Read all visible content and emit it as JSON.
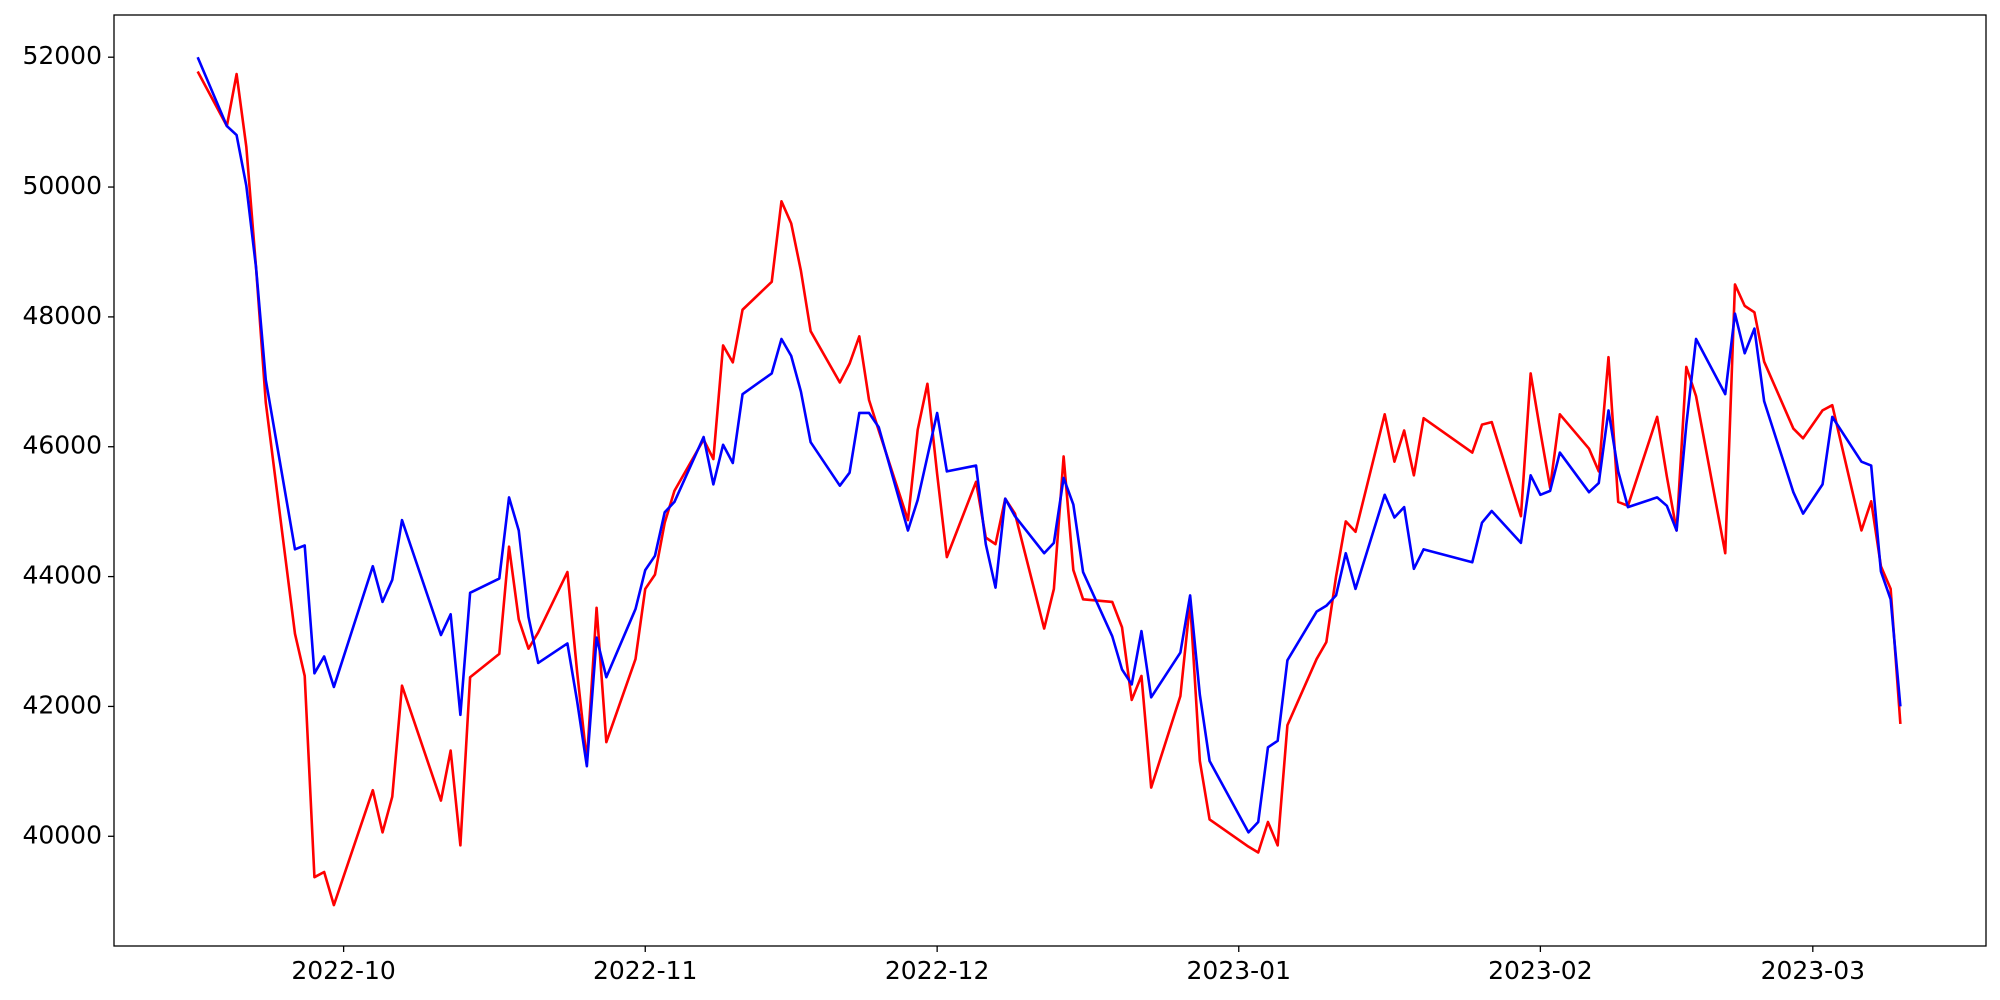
{
  "chart_data": {
    "type": "line",
    "x": [
      -15,
      -12,
      -11,
      -10,
      -9,
      -8,
      -5,
      -4,
      -3,
      -2,
      -1,
      3,
      4,
      5,
      6,
      10,
      11,
      12,
      13,
      16,
      17,
      18,
      19,
      20,
      23,
      24,
      25,
      26,
      27,
      30,
      31,
      32,
      33,
      34,
      37,
      38,
      39,
      40,
      41,
      44,
      45,
      46,
      47,
      48,
      51,
      52,
      53,
      54,
      55,
      58,
      59,
      60,
      61,
      62,
      65,
      66,
      67,
      68,
      69,
      72,
      73,
      74,
      75,
      76,
      79,
      80,
      81,
      82,
      83,
      86,
      87,
      88,
      89,
      93,
      94,
      95,
      96,
      97,
      100,
      101,
      102,
      103,
      104,
      107,
      108,
      109,
      110,
      111,
      116,
      117,
      118,
      121,
      122,
      123,
      124,
      125,
      128,
      129,
      130,
      131,
      132,
      135,
      136,
      137,
      138,
      139,
      142,
      143,
      144,
      145,
      146,
      149,
      150,
      152,
      153,
      156,
      157,
      158,
      159,
      160
    ],
    "series": [
      {
        "color": "#ff0000",
        "values": [
          51780,
          50940,
          51740,
          50620,
          48760,
          46680,
          43120,
          42470,
          39370,
          39450,
          38940,
          40710,
          40060,
          40610,
          42320,
          40550,
          41320,
          39860,
          42450,
          42810,
          44460,
          43340,
          42890,
          43140,
          44070,
          42530,
          41160,
          43520,
          41450,
          42730,
          43810,
          44030,
          44830,
          45320,
          46110,
          45810,
          47560,
          47300,
          48110,
          48540,
          49780,
          49440,
          48710,
          47780,
          46990,
          47280,
          47700,
          46720,
          46250,
          44870,
          46260,
          46970,
          45580,
          44300,
          45460,
          44600,
          44500,
          45200,
          44970,
          43200,
          43810,
          45850,
          44100,
          43650,
          43610,
          43220,
          42100,
          42470,
          40750,
          42160,
          43610,
          41160,
          40260,
          39840,
          39750,
          40220,
          39860,
          41710,
          42730,
          42990,
          44000,
          44850,
          44690,
          46500,
          45770,
          46250,
          45560,
          46440,
          45910,
          46340,
          46380,
          44930,
          47130,
          46230,
          45370,
          46500,
          45970,
          45620,
          47380,
          45150,
          45090,
          46460,
          45540,
          44710,
          47230,
          46780,
          44360,
          48500,
          48170,
          48070,
          47310,
          46280,
          46130,
          46560,
          46640,
          44710,
          45160,
          44160,
          43810,
          41730
        ]
      },
      {
        "color": "#0000ff",
        "values": [
          52000,
          50940,
          50800,
          50020,
          48760,
          47030,
          44420,
          44480,
          42510,
          42770,
          42300,
          44160,
          43610,
          43950,
          44870,
          43100,
          43420,
          41870,
          43750,
          43970,
          45220,
          44710,
          43380,
          42670,
          42970,
          42080,
          41080,
          43060,
          42450,
          43500,
          44100,
          44320,
          44990,
          45150,
          46150,
          45420,
          46030,
          45750,
          46810,
          47130,
          47660,
          47400,
          46850,
          46070,
          45400,
          45600,
          46520,
          46520,
          46300,
          44710,
          45180,
          45850,
          46520,
          45620,
          45710,
          44500,
          43830,
          45200,
          44930,
          44360,
          44520,
          45520,
          45110,
          44070,
          43080,
          42570,
          42340,
          43160,
          42140,
          42830,
          43710,
          42180,
          41160,
          40060,
          40220,
          41370,
          41470,
          42710,
          43460,
          43550,
          43710,
          44360,
          43810,
          45260,
          44910,
          45070,
          44120,
          44420,
          44220,
          44830,
          45010,
          44520,
          45560,
          45260,
          45320,
          45910,
          45300,
          45440,
          46560,
          45620,
          45070,
          45220,
          45090,
          44710,
          46340,
          47660,
          46810,
          48050,
          47440,
          47820,
          46700,
          45300,
          44970,
          45420,
          46460,
          45770,
          45710,
          44080,
          43650,
          42000
        ]
      }
    ],
    "xlim": [
      -23.6,
      168.8
    ],
    "xticks": [
      {
        "value": 0,
        "label": "2022-10"
      },
      {
        "value": 31,
        "label": "2022-11"
      },
      {
        "value": 61,
        "label": "2022-12"
      },
      {
        "value": 92,
        "label": "2023-01"
      },
      {
        "value": 123,
        "label": "2023-02"
      },
      {
        "value": 151,
        "label": "2023-03"
      }
    ],
    "ylim": [
      38310,
      52650
    ],
    "yticks": [
      40000,
      42000,
      44000,
      46000,
      48000,
      50000,
      52000
    ]
  }
}
